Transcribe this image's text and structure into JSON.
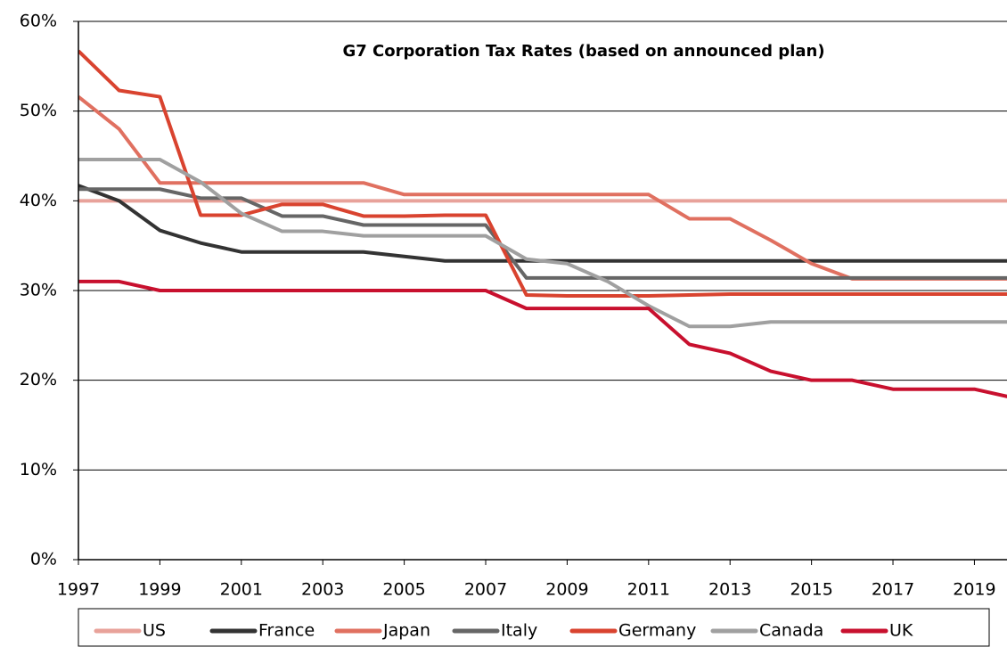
{
  "chart_data": {
    "type": "line",
    "title": "G7 Corporation Tax Rates (based on announced plan)",
    "x": [
      1997,
      1998,
      1999,
      2000,
      2001,
      2002,
      2003,
      2004,
      2005,
      2006,
      2007,
      2008,
      2009,
      2010,
      2011,
      2012,
      2013,
      2014,
      2015,
      2016,
      2017,
      2018,
      2019,
      2020
    ],
    "xlim": [
      1997,
      2019.8
    ],
    "xticks": [
      1997,
      1999,
      2001,
      2003,
      2005,
      2007,
      2009,
      2011,
      2013,
      2015,
      2017,
      2019
    ],
    "ylim": [
      0,
      60
    ],
    "yticks": [
      {
        "value": 0,
        "label": "0%"
      },
      {
        "value": 10,
        "label": "10%"
      },
      {
        "value": 20,
        "label": "20%"
      },
      {
        "value": 30,
        "label": "30%"
      },
      {
        "value": 40,
        "label": "40%"
      },
      {
        "value": 50,
        "label": "50%"
      },
      {
        "value": 60,
        "label": "60%"
      }
    ],
    "grid": true,
    "legend": "bottom",
    "series": [
      {
        "name": "US",
        "color": "#e8a29a",
        "values": [
          40,
          40,
          40,
          40,
          40,
          40,
          40,
          40,
          40,
          40,
          40,
          40,
          40,
          40,
          40,
          40,
          40,
          40,
          40,
          40,
          40,
          40,
          40,
          40
        ]
      },
      {
        "name": "France",
        "color": "#333333",
        "values": [
          41.7,
          40,
          36.7,
          35.3,
          34.3,
          34.3,
          34.3,
          34.3,
          33.8,
          33.3,
          33.3,
          33.3,
          33.3,
          33.3,
          33.3,
          33.3,
          33.3,
          33.3,
          33.3,
          33.3,
          33.3,
          33.3,
          33.3,
          33.3
        ]
      },
      {
        "name": "Japan",
        "color": "#e07060",
        "values": [
          51.6,
          48,
          42,
          42,
          42,
          42,
          42,
          42,
          40.7,
          40.7,
          40.7,
          40.7,
          40.7,
          40.7,
          40.7,
          38,
          38,
          35.6,
          33,
          31.3,
          31.3,
          31.3,
          31.3,
          31.3
        ]
      },
      {
        "name": "Italy",
        "color": "#666666",
        "values": [
          41.3,
          41.3,
          41.3,
          40.3,
          40.3,
          38.3,
          38.3,
          37.3,
          37.3,
          37.3,
          37.3,
          31.4,
          31.4,
          31.4,
          31.4,
          31.4,
          31.4,
          31.4,
          31.4,
          31.4,
          31.4,
          31.4,
          31.4,
          31.4
        ]
      },
      {
        "name": "Germany",
        "color": "#d9432f",
        "values": [
          56.7,
          52.3,
          51.6,
          38.4,
          38.4,
          39.6,
          39.6,
          38.3,
          38.3,
          38.4,
          38.4,
          29.5,
          29.4,
          29.4,
          29.4,
          29.5,
          29.6,
          29.6,
          29.6,
          29.6,
          29.6,
          29.6,
          29.6,
          29.6
        ]
      },
      {
        "name": "Canada",
        "color": "#a0a0a0",
        "values": [
          44.6,
          44.6,
          44.6,
          42.1,
          38.6,
          36.6,
          36.6,
          36.1,
          36.1,
          36.1,
          36.1,
          33.5,
          33,
          31,
          28.3,
          26,
          26,
          26.5,
          26.5,
          26.5,
          26.5,
          26.5,
          26.5,
          26.5
        ]
      },
      {
        "name": "UK",
        "color": "#c8102e",
        "values": [
          31,
          31,
          30,
          30,
          30,
          30,
          30,
          30,
          30,
          30,
          30,
          28,
          28,
          28,
          28,
          24,
          23,
          21,
          20,
          20,
          19,
          19,
          19,
          18
        ]
      }
    ]
  }
}
